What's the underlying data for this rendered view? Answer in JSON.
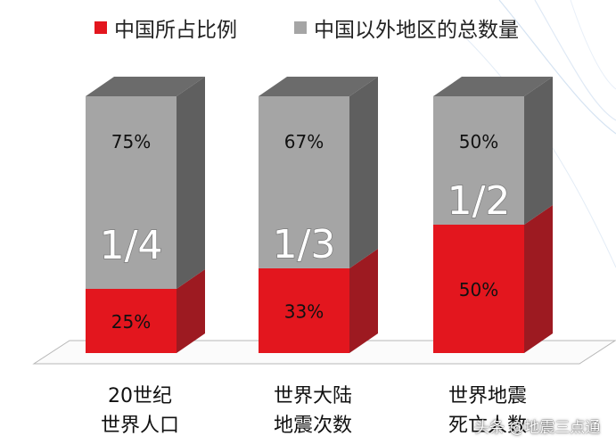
{
  "chart_data": {
    "type": "bar",
    "stacked": true,
    "style": "3d-columns",
    "categories": [
      [
        "20世纪",
        "世界人口"
      ],
      [
        "世界大陆",
        "地震次数"
      ],
      [
        "世界地震",
        "死亡人数"
      ]
    ],
    "series": [
      {
        "name": "中国所占比例",
        "values": [
          25,
          33,
          50
        ],
        "labels": [
          "25%",
          "33%",
          "50%"
        ],
        "color": "#e3161e",
        "side_color": "#9d1a21"
      },
      {
        "name": "中国以外地区的总数量",
        "values": [
          75,
          67,
          50
        ],
        "labels": [
          "75%",
          "67%",
          "50%"
        ],
        "color": "#a5a5a5",
        "side_color": "#5f5f5f",
        "top_color": "#6b6b6b"
      }
    ],
    "fraction_labels": [
      "1/4",
      "1/3",
      "1/2"
    ],
    "ylim": [
      0,
      100
    ],
    "legend": "top"
  },
  "watermark": "头条 @地震三点通"
}
